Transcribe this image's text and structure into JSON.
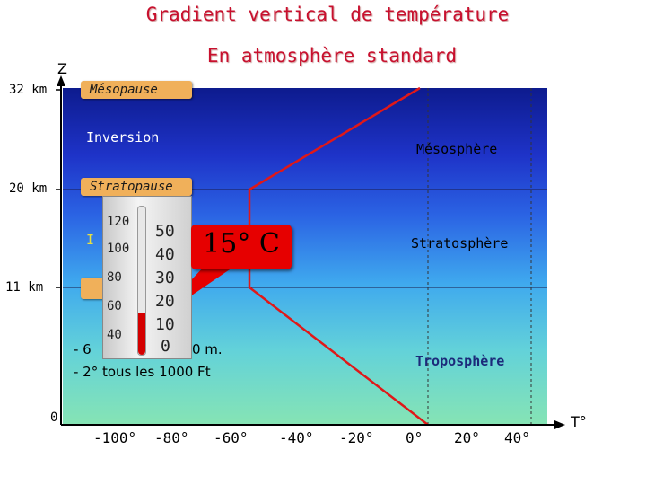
{
  "title": "Gradient vertical de température",
  "subtitle": "En atmosphère standard",
  "axis": {
    "z_label": "Z",
    "t_label": "T°"
  },
  "altitudes": [
    "32 km",
    "20 km",
    "11 km",
    "0"
  ],
  "boxes": {
    "mesopause": "Mésopause",
    "stratopause": "Stratopause",
    "tropopause": ""
  },
  "inversion_upper": "Inversion",
  "inversion_lower": "I",
  "layers": {
    "mesosphere": "Mésosphère",
    "stratosphere": "Stratosphère",
    "troposphere": "Troposphère"
  },
  "callout": "15° C",
  "gradients": [
    "- 6",
    "0 m.",
    "- 2° tous les 1000 Ft"
  ],
  "temp_ticks": [
    "-100°",
    "-80°",
    "-60°",
    "-40°",
    "-20°",
    "0°",
    "20°",
    "40°"
  ],
  "thermometer_scale": [
    "50",
    "40",
    "30",
    "20",
    "10",
    "0"
  ],
  "thermometer_left_scale": [
    "120",
    "100",
    "80",
    "60",
    "40"
  ],
  "colors": {
    "title": "#c8102e",
    "profile_line": "#e01818",
    "callout": "#e60000",
    "label_box": "#f0b05a"
  }
}
